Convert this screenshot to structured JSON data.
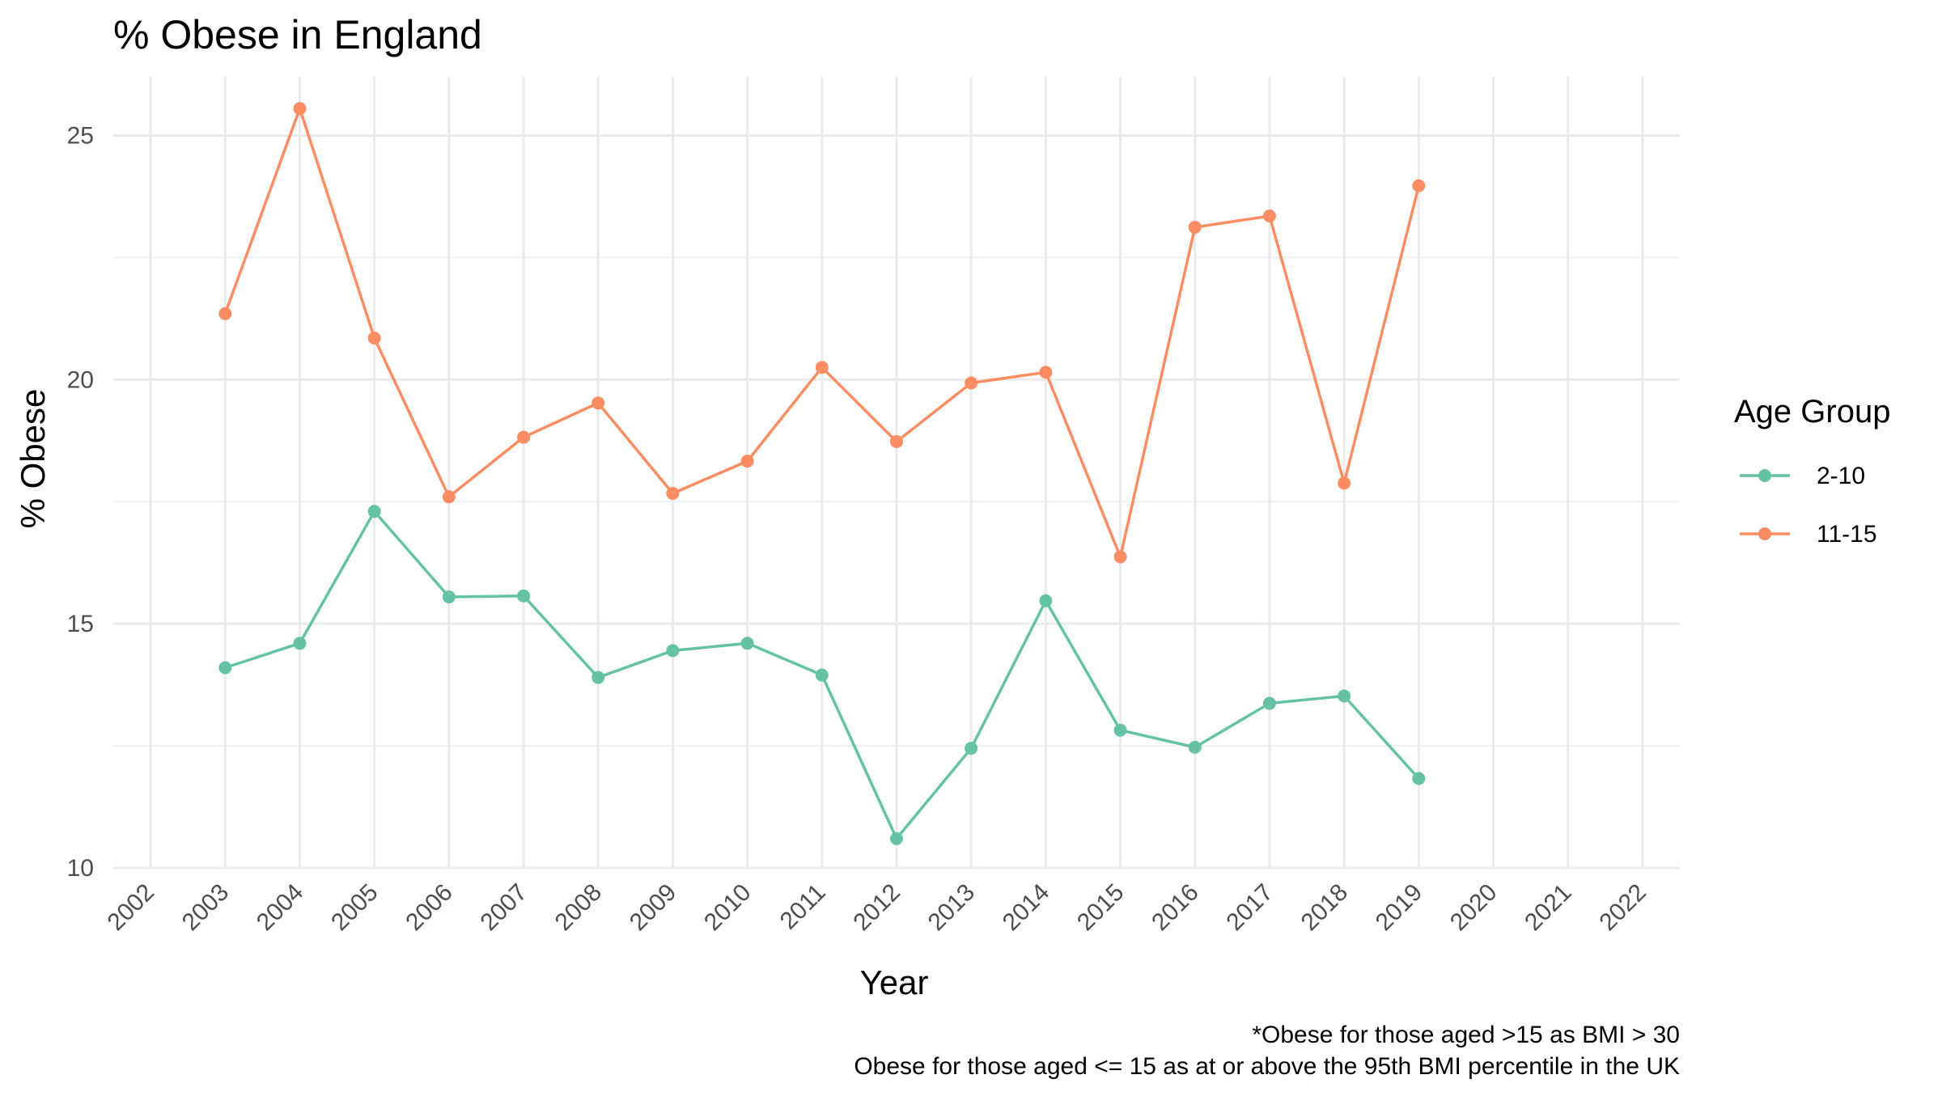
{
  "chart_data": {
    "type": "line",
    "title": "% Obese in England",
    "xlabel": "Year",
    "ylabel": "% Obese",
    "x": [
      2002,
      2003,
      2004,
      2005,
      2006,
      2007,
      2008,
      2009,
      2010,
      2011,
      2012,
      2013,
      2014,
      2015,
      2016,
      2017,
      2018,
      2019,
      2020,
      2021,
      2022
    ],
    "x_tick_labels": [
      "2002",
      "2003",
      "2004",
      "2005",
      "2006",
      "2007",
      "2008",
      "2009",
      "2010",
      "2011",
      "2012",
      "2013",
      "2014",
      "2015",
      "2016",
      "2017",
      "2018",
      "2019",
      "2020",
      "2021",
      "2022"
    ],
    "y_ticks": [
      10,
      15,
      20,
      25
    ],
    "y_tick_labels": [
      "10",
      "15",
      "20",
      "25"
    ],
    "xlim": [
      2001.5,
      2022.5
    ],
    "ylim": [
      10,
      26.2
    ],
    "grid": true,
    "legend_title": "Age Group",
    "legend_position": "right",
    "series": [
      {
        "name": "2-10",
        "color": "#66c2a5",
        "x": [
          2003,
          2004,
          2005,
          2006,
          2007,
          2008,
          2009,
          2010,
          2011,
          2012,
          2013,
          2014,
          2015,
          2016,
          2017,
          2018,
          2019
        ],
        "values": [
          14.1,
          14.6,
          17.3,
          15.55,
          15.57,
          13.9,
          14.45,
          14.6,
          13.95,
          10.6,
          12.45,
          15.47,
          12.82,
          12.47,
          13.37,
          13.52,
          11.83
        ]
      },
      {
        "name": "11-15",
        "color": "#fc8d62",
        "x": [
          2003,
          2004,
          2005,
          2006,
          2007,
          2008,
          2009,
          2010,
          2011,
          2012,
          2013,
          2014,
          2015,
          2016,
          2017,
          2018,
          2019
        ],
        "values": [
          21.35,
          25.55,
          20.85,
          17.6,
          18.82,
          19.52,
          17.67,
          18.33,
          20.25,
          18.73,
          19.93,
          20.15,
          16.37,
          23.12,
          23.35,
          17.88,
          23.97
        ]
      }
    ],
    "caption": [
      "*Obese for those aged >15 as BMI > 30",
      "Obese for those aged <= 15 as at or above the 95th BMI percentile in the UK"
    ]
  }
}
